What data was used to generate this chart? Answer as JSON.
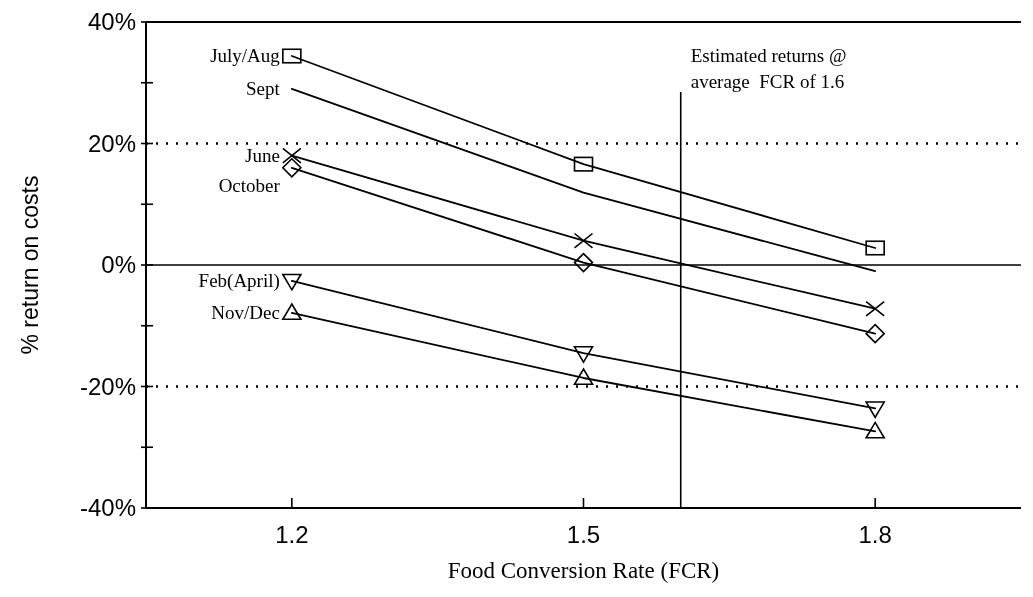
{
  "chart_data": {
    "type": "line",
    "xlabel": "Food Conversion Rate (FCR)",
    "ylabel": "% return on costs",
    "x": [
      1.2,
      1.5,
      1.8
    ],
    "series": [
      {
        "name": "July/Aug",
        "color": "#000000",
        "marker": "square",
        "values": [
          34.4,
          16.6,
          2.8
        ]
      },
      {
        "name": "Sept",
        "color": "#000000",
        "marker": "none",
        "values": [
          29,
          11.9,
          -1
        ]
      },
      {
        "name": "June",
        "color": "#000000",
        "marker": "cross",
        "values": [
          18,
          4,
          -7.2
        ]
      },
      {
        "name": "October",
        "color": "#000000",
        "marker": "diamond",
        "values": [
          16,
          0.4,
          -11.3
        ]
      },
      {
        "name": "Feb(April)",
        "color": "#000000",
        "marker": "triangle-down",
        "values": [
          -2.6,
          -14.5,
          -23.6
        ]
      },
      {
        "name": "Nov/Dec",
        "color": "#000000",
        "marker": "triangle",
        "values": [
          -7.9,
          -18.6,
          -27.4
        ]
      }
    ],
    "xlim": [
      1.05,
      1.95
    ],
    "xticks": [
      1.2,
      1.5,
      1.8
    ],
    "ylim": [
      -40,
      40
    ],
    "yticks": [
      {
        "value": -40,
        "label": "-40%"
      },
      {
        "value": -30,
        "label": null
      },
      {
        "value": -20,
        "label": "-20%"
      },
      {
        "value": -10,
        "label": null
      },
      {
        "value": 0,
        "label": "0%"
      },
      {
        "value": 10,
        "label": null
      },
      {
        "value": 20,
        "label": "20%"
      },
      {
        "value": 30,
        "label": null
      },
      {
        "value": 40,
        "label": "40%"
      }
    ],
    "ref_lines": [
      {
        "axis": "y",
        "value": 20,
        "line_style": "dotted",
        "color": "#000000"
      },
      {
        "axis": "y",
        "value": -20,
        "line_style": "dotted",
        "color": "#000000"
      },
      {
        "axis": "y",
        "value": 0,
        "line_style": "solid",
        "color": "#000000"
      },
      {
        "axis": "x",
        "value": 1.6,
        "line_style": "solid",
        "color": "#000000",
        "label": "Estimated returns @ average  FCR of 1.6"
      }
    ],
    "legend": false,
    "line_style": "solid"
  }
}
